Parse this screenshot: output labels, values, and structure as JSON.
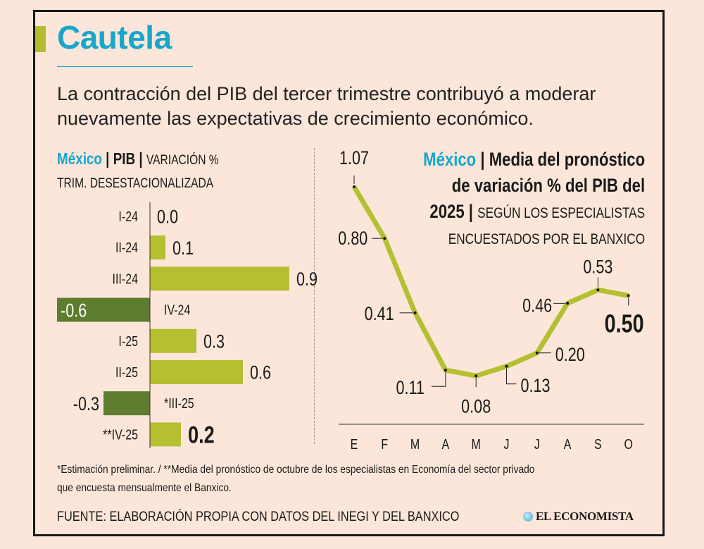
{
  "header": {
    "title": "Cautela",
    "subtitle": "La contracción del PIB del tercer trimestre contribuyó a moderar nuevamente las expectativas de crecimiento económico."
  },
  "left_header": {
    "country": "México",
    "sep1": " | ",
    "metric": "PIB",
    "sep2": " | ",
    "desc_line1": "VARIACIÓN %",
    "desc_line2": "TRIM. DESESTACIONALIZADA"
  },
  "right_header": {
    "country": "México",
    "sep1": " | ",
    "title_line1": "Media del pronóstico",
    "title_line2": "de variación % del PIB del",
    "title_year": "2025",
    "sep2": " | ",
    "desc_line1": "SEGÚN LOS ESPECIALISTAS",
    "desc_line2": "ENCUESTADOS POR EL BANXICO"
  },
  "colors": {
    "positive": "#b5bf32",
    "negative": "#5e7c2e",
    "accent": "#17a6cc",
    "background": "#fbe6d9"
  },
  "chart_data": [
    {
      "type": "bar",
      "orientation": "horizontal",
      "title": "México | PIB | VARIACIÓN % TRIM. DESESTACIONALIZADA",
      "categories": [
        "I-24",
        "II-24",
        "III-24",
        "IV-24",
        "I-25",
        "II-25",
        "*III-25",
        "**IV-25"
      ],
      "values": [
        0.0,
        0.1,
        0.9,
        -0.6,
        0.3,
        0.6,
        -0.3,
        0.2
      ],
      "value_labels": [
        "0.0",
        "0.1",
        "0.9",
        "-0.6",
        "0.3",
        "0.6",
        "-0.3",
        "0.2"
      ],
      "xlim": [
        -0.6,
        0.9
      ]
    },
    {
      "type": "line",
      "title": "México | Media del pronóstico de variación % del PIB del 2025 | SEGÚN LOS ESPECIALISTAS ENCUESTADOS POR EL BANXICO",
      "categories": [
        "E",
        "F",
        "M",
        "A",
        "M",
        "J",
        "J",
        "A",
        "S",
        "O"
      ],
      "values": [
        1.07,
        0.8,
        0.41,
        0.11,
        0.08,
        0.13,
        0.2,
        0.46,
        0.53,
        0.5
      ],
      "value_labels": [
        "1.07",
        "0.80",
        "0.41",
        "0.11",
        "0.08",
        "0.13",
        "0.20",
        "0.46",
        "0.53",
        "0.50"
      ],
      "ylim": [
        0,
        1.1
      ]
    }
  ],
  "footer": {
    "note_line1": "*Estimación preliminar. / **Media del pronóstico de octubre de los especialistas en Economía del sector privado",
    "note_line2": "que encuesta mensualmente el Banxico.",
    "source": "FUENTE: ELABORACIÓN PROPIA CON DATOS DEL INEGI Y DEL BANXICO",
    "logo": "EL ECONOMISTA"
  }
}
